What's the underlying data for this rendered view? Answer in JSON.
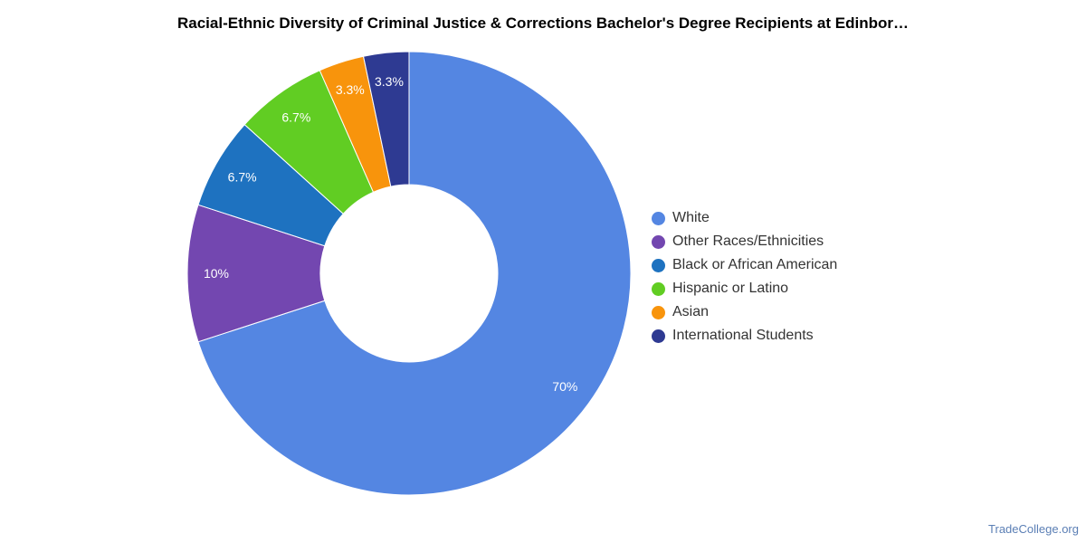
{
  "chart_data": {
    "type": "pie",
    "title": "Racial-Ethnic Diversity of Criminal Justice & Corrections Bachelor's Degree Recipients at Edinbor…",
    "donut": true,
    "legend_position": "right",
    "slices": [
      {
        "name": "White",
        "value": 70,
        "label": "70%",
        "color": "#5486e2"
      },
      {
        "name": "Other Races/Ethnicities",
        "value": 10,
        "label": "10%",
        "color": "#7347b0"
      },
      {
        "name": "Black or African American",
        "value": 6.7,
        "label": "6.7%",
        "color": "#1e72c0"
      },
      {
        "name": "Hispanic or Latino",
        "value": 6.7,
        "label": "6.7%",
        "color": "#61cd23"
      },
      {
        "name": "Asian",
        "value": 3.3,
        "label": "3.3%",
        "color": "#f8940c"
      },
      {
        "name": "International Students",
        "value": 3.3,
        "label": "3.3%",
        "color": "#2e3a92"
      }
    ]
  },
  "watermark": "TradeCollege.org"
}
